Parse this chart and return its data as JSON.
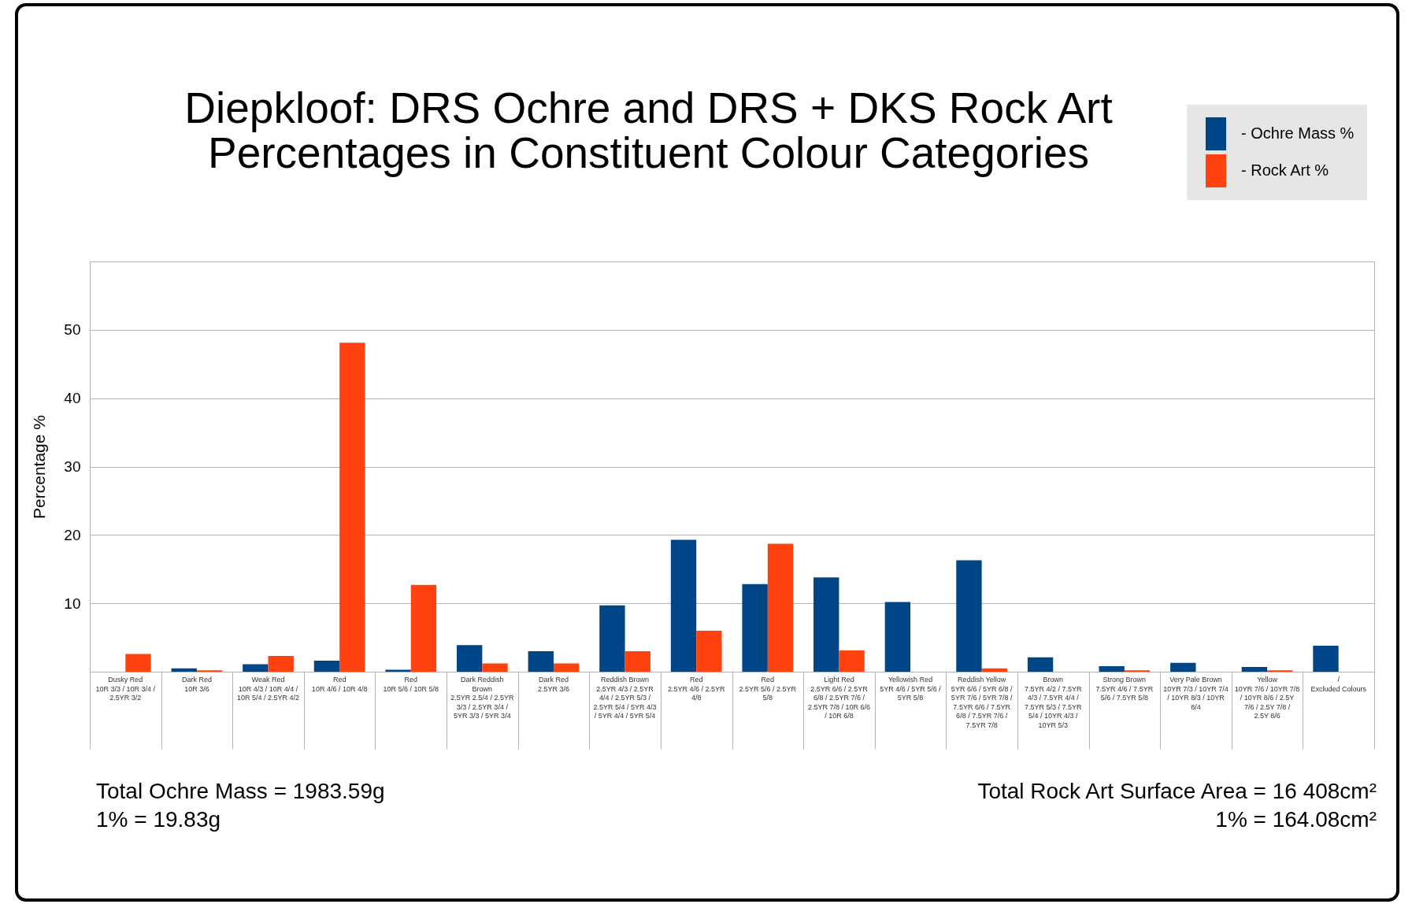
{
  "chart_data": {
    "type": "bar",
    "title": "Diepkloof: DRS Ochre and DRS + DKS Rock Art\nPercentages in Constituent Colour Categories",
    "ylabel": "Percentage %",
    "categories": [
      "Dusky Red\n10R 3/3 / 10R 3/4 / 2.5YR 3/2",
      "Dark Red\n10R 3/6",
      "Weak Red\n10R 4/3 / 10R 4/4 / 10R 5/4 / 2.5YR 4/2",
      "Red\n10R 4/6 / 10R 4/8",
      "Red\n10R 5/6 / 10R 5/8",
      "Dark Reddish Brown\n2.5YR 2.5/4 / 2.5YR 3/3 / 2.5YR 3/4 / 5YR 3/3 / 5YR 3/4",
      "Dark Red\n2.5YR 3/6",
      "Reddish Brown\n2.5YR 4/3 / 2.5YR 4/4 / 2.5YR 5/3 / 2.5YR 5/4 / 5YR 4/3 / 5YR 4/4 / 5YR 5/4",
      "Red\n2.5YR 4/6 / 2.5YR 4/8",
      "Red\n2.5YR 5/6 / 2.5YR 5/8",
      "Light Red\n2.5YR 6/6 / 2.5YR 6/8 / 2.5YR 7/6 / 2.5YR 7/8 / 10R 6/6 / 10R 6/8",
      "Yellowish Red\n5YR 4/6 / 5YR 5/6 / 5YR 5/8",
      "Reddish Yellow\n5YR 6/6 / 5YR 6/8 / 5YR 7/6 / 5YR 7/8 / 7.5YR 6/6 / 7.5YR 6/8 / 7.5YR 7/6 / 7.5YR 7/8",
      "Brown\n7.5YR 4/2 / 7.5YR 4/3 / 7.5YR 4/4 / 7.5YR 5/3 / 7.5YR 5/4 / 10YR 4/3 / 10YR 5/3",
      "Strong Brown\n7.5YR 4/6 / 7.5YR 5/6 / 7.5YR 5/8",
      "Very Pale Brown\n10YR 7/3 / 10YR 7/4 / 10YR 8/3 / 10YR 8/4",
      "Yellow\n10YR 7/6 / 10YR 7/8 / 10YR 8/6 / 2.5Y 7/6 / 2.5Y 7/8 / 2.5Y 8/6",
      "/\nExcluded Colours"
    ],
    "series": [
      {
        "name": "- Ochre Mass %",
        "color": "#004586",
        "values": [
          null,
          0.5,
          1.1,
          1.6,
          0.3,
          3.9,
          3.0,
          9.7,
          19.3,
          12.8,
          13.8,
          10.2,
          16.3,
          2.1,
          0.8,
          1.3,
          0.7,
          3.8
        ]
      },
      {
        "name": "- Rock Art %",
        "color": "#ff420e",
        "values": [
          2.6,
          0.2,
          2.3,
          48.1,
          12.7,
          1.2,
          1.2,
          3.0,
          6.0,
          18.7,
          3.1,
          null,
          0.5,
          null,
          0.2,
          null,
          0.2,
          null
        ]
      }
    ],
    "ylim": [
      0,
      60
    ],
    "yticks": [
      10,
      20,
      30,
      40,
      50
    ],
    "grid": "y",
    "legend": "top right",
    "annotations": [
      "Total Ochre Mass = 1983.59g",
      "1% = 19.83g",
      "Total Rock Art Surface Area = 16 408cm²",
      "1% = 164.08cm²"
    ]
  }
}
